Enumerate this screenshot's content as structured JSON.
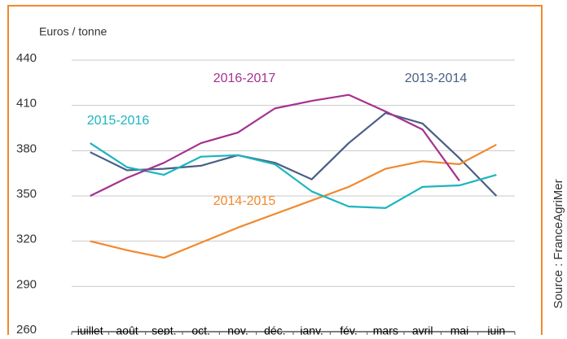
{
  "chart_data": {
    "type": "line",
    "y_label": "Euros / tonne",
    "source": "Source : FranceAgriMer",
    "categories": [
      "juillet",
      "août",
      "sept.",
      "oct.",
      "nov.",
      "déc.",
      "janv.",
      "fév.",
      "mars",
      "avril",
      "mai",
      "juin"
    ],
    "series": [
      {
        "name": "2013-2014",
        "color": "#4a5e85",
        "values": [
          379,
          367,
          368,
          370,
          377,
          372,
          361,
          385,
          405,
          398,
          375,
          350
        ]
      },
      {
        "name": "2014-2015",
        "color": "#f0892d",
        "values": [
          320,
          314,
          309,
          319,
          329,
          338,
          347,
          356,
          368,
          373,
          371,
          384
        ]
      },
      {
        "name": "2015-2016",
        "color": "#1bb5bf",
        "values": [
          385,
          369,
          364,
          376,
          377,
          371,
          353,
          343,
          342,
          356,
          357,
          364
        ]
      },
      {
        "name": "2016-2017",
        "color": "#a6318f",
        "values": [
          350,
          362,
          372,
          385,
          392,
          408,
          413,
          417,
          406,
          394,
          360,
          null
        ]
      }
    ],
    "ylim": [
      260,
      440
    ],
    "yticks": [
      260,
      290,
      320,
      350,
      380,
      410,
      440
    ],
    "grid": true,
    "frame_color": "#f0892d"
  }
}
